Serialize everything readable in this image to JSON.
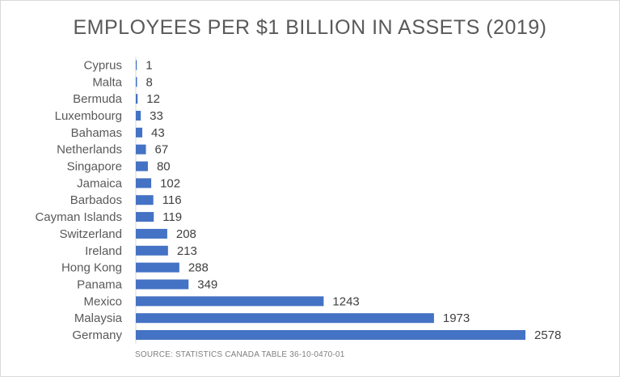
{
  "chart_data": {
    "type": "bar",
    "orientation": "horizontal",
    "title": "EMPLOYEES PER $1 BILLION IN ASSETS (2019)",
    "categories": [
      "Cyprus",
      "Malta",
      "Bermuda",
      "Luxembourg",
      "Bahamas",
      "Netherlands",
      "Singapore",
      "Jamaica",
      "Barbados",
      "Cayman Islands",
      "Switzerland",
      "Ireland",
      "Hong Kong",
      "Panama",
      "Mexico",
      "Malaysia",
      "Germany"
    ],
    "values": [
      1,
      8,
      12,
      33,
      43,
      67,
      80,
      102,
      116,
      119,
      208,
      213,
      288,
      349,
      1243,
      1973,
      2578
    ],
    "data_labels": [
      "1",
      "8",
      "12",
      "33",
      "43",
      "67",
      "80",
      "102",
      "116",
      "119",
      "208",
      "213",
      "288",
      "349",
      "1243",
      "1973",
      "2578"
    ],
    "xlim": [
      0,
      2578
    ],
    "grid": false,
    "legend": "none",
    "bar_color": "#4472c4",
    "source": "SOURCE: STATISTICS CANADA TABLE 36-10-0470-01"
  }
}
